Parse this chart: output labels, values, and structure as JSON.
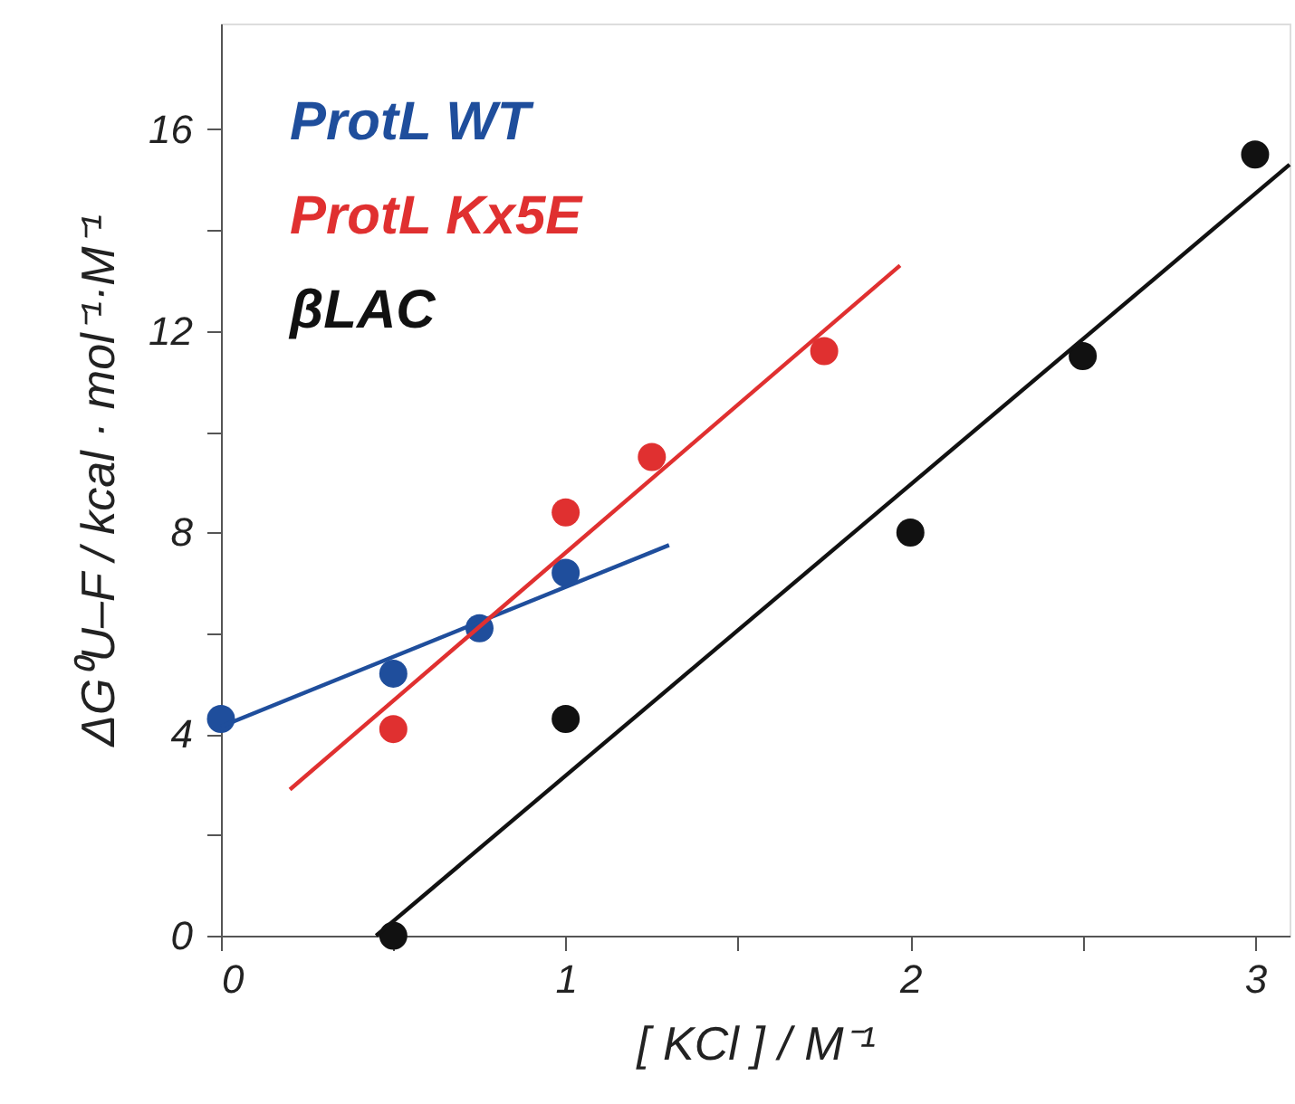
{
  "chart_data": {
    "type": "scatter",
    "xlabel": "[ KCl ] / M⁻¹",
    "ylabel": "ΔG⁰U–F / kcal · mol⁻¹·M⁻¹",
    "xlim": [
      0,
      3.1
    ],
    "ylim": [
      0,
      18.1
    ],
    "xticks": [
      0,
      {
        "value": 0.5,
        "label": null
      },
      1,
      {
        "value": 1.5,
        "label": null
      },
      2,
      {
        "value": 2.5,
        "label": null
      },
      3
    ],
    "yticks": [
      0,
      {
        "value": 2,
        "label": null
      },
      4,
      {
        "value": 6,
        "label": null
      },
      8,
      {
        "value": 10,
        "label": null
      },
      12,
      {
        "value": 14,
        "label": null
      },
      16
    ],
    "grid": false,
    "legend": "top left",
    "series": [
      {
        "name": "ProtL WT",
        "color": "#1f4e9c",
        "marker": "circle",
        "x": [
          0,
          0.5,
          0.75,
          1
        ],
        "values": [
          4.3,
          5.2,
          6.1,
          7.2
        ]
      },
      {
        "name": "ProtL Kx5E",
        "color": "#e03030",
        "marker": "circle",
        "x": [
          0.5,
          1,
          1.25,
          1.75
        ],
        "values": [
          4.1,
          8.4,
          9.5,
          11.6
        ]
      },
      {
        "name": "βLAC",
        "color": "#111111",
        "marker": "circle",
        "x": [
          0.5,
          1,
          2,
          2.5,
          3
        ],
        "values": [
          0,
          4.3,
          8.0,
          11.5,
          15.5
        ]
      },
      {
        "color": "#1f4e9c",
        "type": "line",
        "x": [
          0,
          1.3
        ],
        "values": [
          4.15,
          7.75
        ]
      },
      {
        "color": "#e03030",
        "type": "line",
        "x": [
          0.2,
          1.97
        ],
        "values": [
          2.9,
          13.3
        ]
      },
      {
        "color": "#111111",
        "type": "line",
        "x": [
          0.45,
          3.1
        ],
        "values": [
          0,
          15.3
        ]
      }
    ]
  }
}
